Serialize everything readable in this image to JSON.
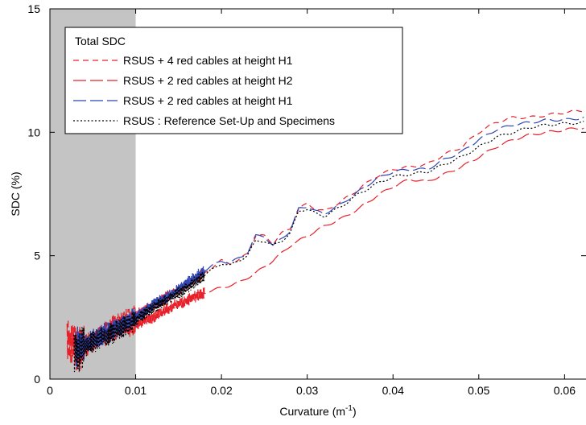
{
  "chart_data": {
    "type": "line",
    "xlabel_main": "Curvature (m",
    "xlabel_sup": "-1",
    "xlabel_close": ")",
    "ylabel": "SDC (%)",
    "xlim": [
      0,
      0.0625
    ],
    "ylim": [
      0,
      15
    ],
    "x_ticks": [
      {
        "value": 0,
        "label": "0"
      },
      {
        "value": 0.01,
        "label": "0.01"
      },
      {
        "value": 0.02,
        "label": "0.02"
      },
      {
        "value": 0.03,
        "label": "0.03"
      },
      {
        "value": 0.04,
        "label": "0.04"
      },
      {
        "value": 0.05,
        "label": "0.05"
      },
      {
        "value": 0.06,
        "label": "0.06"
      }
    ],
    "y_ticks": [
      {
        "value": 0,
        "label": "0"
      },
      {
        "value": 5,
        "label": "5"
      },
      {
        "value": 10,
        "label": "10"
      },
      {
        "value": 15,
        "label": "15"
      }
    ],
    "grid": false,
    "shaded_region": {
      "x_from": 0,
      "x_to": 0.01,
      "color": "#c4c4c4"
    },
    "legend": {
      "title": "Total SDC",
      "placement": "top-left"
    },
    "series": [
      {
        "name": "RSUS + 4 red cables at height H1",
        "color": "#e8202a",
        "dash": "7,5",
        "noise_start": 0.003,
        "points": [
          [
            0.003,
            1.0
          ],
          [
            0.005,
            1.6
          ],
          [
            0.008,
            2.3
          ],
          [
            0.01,
            2.6
          ],
          [
            0.012,
            3.0
          ],
          [
            0.014,
            3.4
          ],
          [
            0.016,
            3.8
          ],
          [
            0.018,
            4.3
          ],
          [
            0.02,
            4.8
          ],
          [
            0.021,
            4.7
          ],
          [
            0.022,
            4.8
          ],
          [
            0.023,
            5.1
          ],
          [
            0.024,
            5.8
          ],
          [
            0.025,
            5.8
          ],
          [
            0.026,
            5.5
          ],
          [
            0.027,
            5.9
          ],
          [
            0.028,
            6.1
          ],
          [
            0.029,
            6.9
          ],
          [
            0.03,
            7.1
          ],
          [
            0.031,
            6.9
          ],
          [
            0.032,
            6.8
          ],
          [
            0.034,
            7.2
          ],
          [
            0.036,
            7.7
          ],
          [
            0.038,
            8.2
          ],
          [
            0.04,
            8.5
          ],
          [
            0.042,
            8.6
          ],
          [
            0.044,
            8.7
          ],
          [
            0.046,
            9.1
          ],
          [
            0.048,
            9.4
          ],
          [
            0.05,
            10.0
          ],
          [
            0.052,
            10.4
          ],
          [
            0.054,
            10.6
          ],
          [
            0.056,
            10.6
          ],
          [
            0.058,
            10.7
          ],
          [
            0.06,
            10.8
          ],
          [
            0.0625,
            10.9
          ]
        ]
      },
      {
        "name": "RSUS + 2 red cables at height H2",
        "color": "#e8202a",
        "dash": "16,5",
        "noise_start": 0.002,
        "points": [
          [
            0.002,
            1.5
          ],
          [
            0.004,
            1.3
          ],
          [
            0.006,
            1.7
          ],
          [
            0.008,
            2.0
          ],
          [
            0.01,
            2.2
          ],
          [
            0.012,
            2.5
          ],
          [
            0.014,
            2.9
          ],
          [
            0.016,
            3.2
          ],
          [
            0.018,
            3.5
          ],
          [
            0.02,
            3.7
          ],
          [
            0.022,
            3.9
          ],
          [
            0.024,
            4.3
          ],
          [
            0.026,
            4.8
          ],
          [
            0.028,
            5.4
          ],
          [
            0.03,
            5.8
          ],
          [
            0.032,
            6.2
          ],
          [
            0.034,
            6.5
          ],
          [
            0.036,
            6.9
          ],
          [
            0.038,
            7.4
          ],
          [
            0.04,
            7.8
          ],
          [
            0.042,
            8.1
          ],
          [
            0.044,
            8.0
          ],
          [
            0.046,
            8.3
          ],
          [
            0.048,
            8.6
          ],
          [
            0.05,
            9.0
          ],
          [
            0.052,
            9.4
          ],
          [
            0.054,
            9.7
          ],
          [
            0.056,
            9.9
          ],
          [
            0.058,
            10.0
          ],
          [
            0.06,
            10.1
          ],
          [
            0.0625,
            10.2
          ]
        ]
      },
      {
        "name": "RSUS + 2 red cables at height H1",
        "color": "#2f46b4",
        "dash": "16,5",
        "noise_start": 0.003,
        "points": [
          [
            0.003,
            1.2
          ],
          [
            0.005,
            1.6
          ],
          [
            0.008,
            2.1
          ],
          [
            0.01,
            2.5
          ],
          [
            0.012,
            3.0
          ],
          [
            0.014,
            3.4
          ],
          [
            0.016,
            3.9
          ],
          [
            0.018,
            4.4
          ],
          [
            0.02,
            4.8
          ],
          [
            0.021,
            4.7
          ],
          [
            0.022,
            4.9
          ],
          [
            0.023,
            5.1
          ],
          [
            0.024,
            5.8
          ],
          [
            0.025,
            5.8
          ],
          [
            0.026,
            5.4
          ],
          [
            0.027,
            5.7
          ],
          [
            0.028,
            6.0
          ],
          [
            0.029,
            6.9
          ],
          [
            0.03,
            7.0
          ],
          [
            0.031,
            6.8
          ],
          [
            0.032,
            6.7
          ],
          [
            0.034,
            7.1
          ],
          [
            0.036,
            7.6
          ],
          [
            0.038,
            8.1
          ],
          [
            0.04,
            8.4
          ],
          [
            0.042,
            8.5
          ],
          [
            0.044,
            8.5
          ],
          [
            0.046,
            8.9
          ],
          [
            0.048,
            9.2
          ],
          [
            0.05,
            9.7
          ],
          [
            0.052,
            10.1
          ],
          [
            0.054,
            10.3
          ],
          [
            0.056,
            10.4
          ],
          [
            0.058,
            10.5
          ],
          [
            0.06,
            10.5
          ],
          [
            0.0625,
            10.6
          ]
        ]
      },
      {
        "name": "RSUS : Reference Set-Up and Specimens",
        "color": "#000000",
        "dash": "2,2.5",
        "noise_start": 0.0028,
        "points": [
          [
            0.003,
            1.1
          ],
          [
            0.005,
            1.5
          ],
          [
            0.008,
            2.0
          ],
          [
            0.01,
            2.4
          ],
          [
            0.012,
            2.9
          ],
          [
            0.014,
            3.3
          ],
          [
            0.016,
            3.7
          ],
          [
            0.018,
            4.2
          ],
          [
            0.02,
            4.7
          ],
          [
            0.021,
            4.6
          ],
          [
            0.022,
            4.8
          ],
          [
            0.023,
            5.0
          ],
          [
            0.024,
            5.6
          ],
          [
            0.025,
            5.6
          ],
          [
            0.026,
            5.4
          ],
          [
            0.027,
            5.6
          ],
          [
            0.028,
            5.9
          ],
          [
            0.029,
            6.8
          ],
          [
            0.03,
            6.9
          ],
          [
            0.031,
            6.7
          ],
          [
            0.032,
            6.6
          ],
          [
            0.034,
            7.0
          ],
          [
            0.036,
            7.5
          ],
          [
            0.038,
            7.9
          ],
          [
            0.04,
            8.2
          ],
          [
            0.042,
            8.3
          ],
          [
            0.044,
            8.4
          ],
          [
            0.046,
            8.7
          ],
          [
            0.048,
            9.0
          ],
          [
            0.05,
            9.4
          ],
          [
            0.052,
            9.8
          ],
          [
            0.054,
            10.0
          ],
          [
            0.056,
            10.2
          ],
          [
            0.058,
            10.3
          ],
          [
            0.06,
            10.35
          ],
          [
            0.0625,
            10.4
          ]
        ]
      }
    ]
  }
}
